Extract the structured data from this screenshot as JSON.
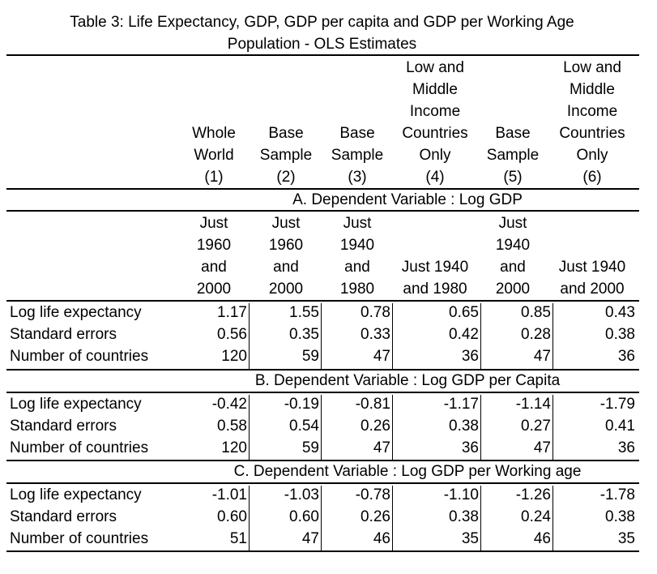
{
  "title_line1": "Table 3: Life Expectancy, GDP, GDP per capita and GDP per Working Age",
  "title_line2": "Population - OLS Estimates",
  "column_headers": [
    [
      "Whole",
      "World",
      "(1)"
    ],
    [
      "Base",
      "Sample",
      "(2)"
    ],
    [
      "Base",
      "Sample",
      "(3)"
    ],
    [
      "Low and",
      "Middle",
      "Income",
      "Countries",
      "Only",
      "(4)"
    ],
    [
      "Base",
      "Sample",
      "(5)"
    ],
    [
      "Low and",
      "Middle",
      "Income",
      "Countries",
      "Only",
      "(6)"
    ]
  ],
  "panels": [
    {
      "heading": "A. Dependent Variable : Log GDP",
      "period_headers": [
        [
          "Just",
          "1960",
          "and",
          "2000"
        ],
        [
          "Just",
          "1960",
          "and",
          "2000"
        ],
        [
          "Just",
          "1940",
          "and",
          "1980"
        ],
        [
          "Just 1940",
          "and 1980"
        ],
        [
          "Just",
          "1940",
          "and",
          "2000"
        ],
        [
          "Just 1940",
          "and 2000"
        ]
      ],
      "rows": [
        {
          "label": "Log life expectancy",
          "values": [
            "1.17",
            "1.55",
            "0.78",
            "0.65",
            "0.85",
            "0.43"
          ]
        },
        {
          "label": "Standard errors",
          "values": [
            "0.56",
            "0.35",
            "0.33",
            "0.42",
            "0.28",
            "0.38"
          ]
        },
        {
          "label": "Number of countries",
          "values": [
            "120",
            "59",
            "47",
            "36",
            "47",
            "36"
          ]
        }
      ]
    },
    {
      "heading": "B. Dependent Variable : Log GDP per Capita",
      "rows": [
        {
          "label": "Log life expectancy",
          "values": [
            "-0.42",
            "-0.19",
            "-0.81",
            "-1.17",
            "-1.14",
            "-1.79"
          ]
        },
        {
          "label": "Standard errors",
          "values": [
            "0.58",
            "0.54",
            "0.26",
            "0.38",
            "0.27",
            "0.41"
          ]
        },
        {
          "label": "Number of countries",
          "values": [
            "120",
            "59",
            "47",
            "36",
            "47",
            "36"
          ]
        }
      ]
    },
    {
      "heading": "C. Dependent Variable : Log GDP per Working age",
      "rows": [
        {
          "label": "Log life expectancy",
          "values": [
            "-1.01",
            "-1.03",
            "-0.78",
            "-1.10",
            "-1.26",
            "-1.78"
          ]
        },
        {
          "label": "Standard errors",
          "values": [
            "0.60",
            "0.60",
            "0.26",
            "0.38",
            "0.24",
            "0.38"
          ]
        },
        {
          "label": "Number of countries",
          "values": [
            "51",
            "47",
            "46",
            "35",
            "46",
            "35"
          ]
        }
      ]
    }
  ]
}
